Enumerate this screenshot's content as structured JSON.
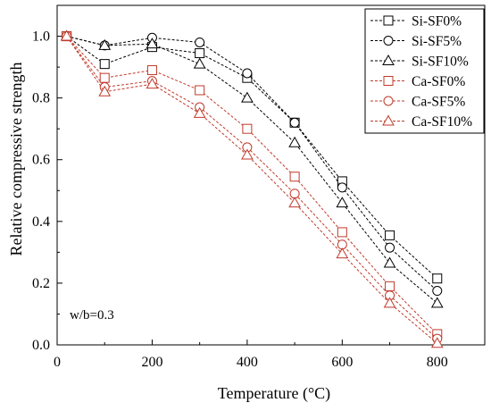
{
  "chart_data": {
    "type": "line",
    "title": "",
    "xlabel": "Temperature (°C)",
    "ylabel": "Relative compressive strength",
    "xlim": [
      0,
      900
    ],
    "ylim": [
      0,
      1.1
    ],
    "x_ticks": [
      0,
      200,
      400,
      600,
      800
    ],
    "x_minor_ticks": [
      100,
      300,
      500,
      700
    ],
    "y_ticks": [
      0.0,
      0.2,
      0.4,
      0.6,
      0.8,
      1.0
    ],
    "y_tick_labels": [
      "0.0",
      "0.2",
      "0.4",
      "0.6",
      "0.8",
      "1.0"
    ],
    "grid": false,
    "legend_position": "top-right",
    "annotation": "w/b=0.3",
    "x": [
      20,
      100,
      200,
      300,
      400,
      500,
      600,
      700,
      800
    ],
    "series": [
      {
        "name": "Si-SF0%",
        "marker": "square",
        "color": "#000000",
        "values": [
          1.0,
          0.91,
          0.965,
          0.945,
          0.865,
          0.72,
          0.53,
          0.355,
          0.215
        ]
      },
      {
        "name": "Si-SF5%",
        "marker": "circle",
        "color": "#000000",
        "values": [
          1.0,
          0.97,
          0.995,
          0.98,
          0.88,
          0.72,
          0.51,
          0.315,
          0.175
        ]
      },
      {
        "name": "Si-SF10%",
        "marker": "triangle",
        "color": "#000000",
        "values": [
          1.0,
          0.97,
          0.975,
          0.91,
          0.8,
          0.655,
          0.46,
          0.265,
          0.135
        ]
      },
      {
        "name": "Ca-SF0%",
        "marker": "square",
        "color": "#c0392b",
        "values": [
          1.0,
          0.865,
          0.89,
          0.825,
          0.7,
          0.545,
          0.365,
          0.19,
          0.035
        ]
      },
      {
        "name": "Ca-SF5%",
        "marker": "circle",
        "color": "#c0392b",
        "values": [
          1.0,
          0.835,
          0.855,
          0.77,
          0.64,
          0.49,
          0.325,
          0.16,
          0.02
        ]
      },
      {
        "name": "Ca-SF10%",
        "marker": "triangle",
        "color": "#c0392b",
        "values": [
          1.0,
          0.82,
          0.845,
          0.75,
          0.615,
          0.46,
          0.295,
          0.135,
          0.005
        ]
      }
    ]
  }
}
